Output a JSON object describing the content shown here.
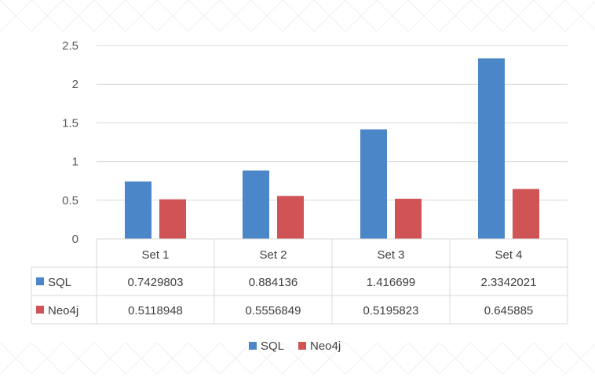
{
  "chart_data": {
    "type": "bar",
    "categories": [
      "Set 1",
      "Set 2",
      "Set 3",
      "Set 4"
    ],
    "series": [
      {
        "name": "SQL",
        "color": "#4a86c8",
        "values": [
          0.7429803,
          0.884136,
          1.416699,
          2.3342021
        ],
        "labels": [
          "0.7429803",
          "0.884136",
          "1.416699",
          "2.3342021"
        ]
      },
      {
        "name": "Neo4j",
        "color": "#d05356",
        "values": [
          0.5118948,
          0.5556849,
          0.5195823,
          0.645885
        ],
        "labels": [
          "0.5118948",
          "0.5556849",
          "0.5195823",
          "0.645885"
        ]
      }
    ],
    "yticks": [
      "0",
      "0.5",
      "1",
      "1.5",
      "2",
      "2.5"
    ],
    "ylim": [
      0,
      2.5
    ],
    "grid": true,
    "legend": "bottom",
    "data_table": true
  }
}
